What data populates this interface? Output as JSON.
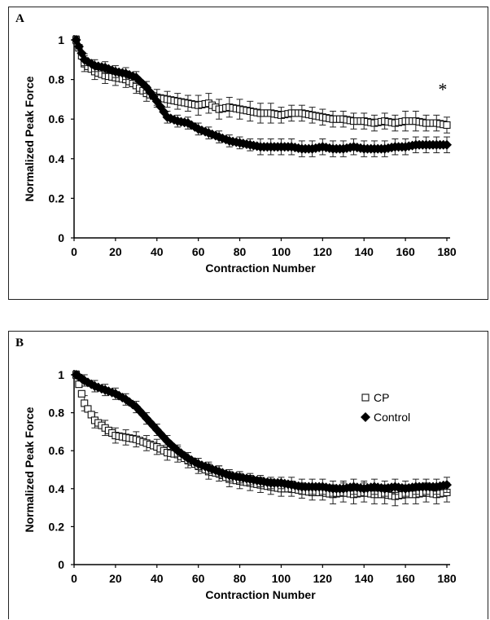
{
  "chart_data": [
    {
      "panel": "A",
      "type": "scatter",
      "xlabel": "Contraction Number",
      "ylabel": "Normalized Peak Force",
      "xlim": [
        0,
        180
      ],
      "ylim": [
        0,
        1
      ],
      "x_ticks": [
        "0",
        "20",
        "40",
        "60",
        "80",
        "100",
        "120",
        "140",
        "160",
        "180"
      ],
      "y_ticks": [
        "0",
        "0.2",
        "0.4",
        "0.6",
        "0.8",
        "1"
      ],
      "annotation": "*",
      "legend": false,
      "series": [
        {
          "marker": "open-square",
          "x": [
            1,
            5,
            10,
            15,
            20,
            25,
            30,
            35,
            40,
            45,
            50,
            55,
            60,
            65,
            70,
            75,
            80,
            85,
            90,
            95,
            100,
            105,
            110,
            115,
            120,
            125,
            130,
            135,
            140,
            145,
            150,
            155,
            160,
            165,
            170,
            175,
            180
          ],
          "y": [
            1.0,
            0.88,
            0.84,
            0.82,
            0.81,
            0.8,
            0.77,
            0.73,
            0.71,
            0.7,
            0.69,
            0.68,
            0.67,
            0.68,
            0.65,
            0.66,
            0.65,
            0.64,
            0.63,
            0.63,
            0.62,
            0.63,
            0.63,
            0.62,
            0.61,
            0.6,
            0.6,
            0.59,
            0.59,
            0.58,
            0.59,
            0.58,
            0.59,
            0.59,
            0.58,
            0.58,
            0.57
          ],
          "err": [
            0.02,
            0.04,
            0.04,
            0.04,
            0.04,
            0.04,
            0.04,
            0.04,
            0.04,
            0.04,
            0.04,
            0.04,
            0.05,
            0.05,
            0.05,
            0.05,
            0.05,
            0.05,
            0.05,
            0.05,
            0.04,
            0.04,
            0.04,
            0.04,
            0.04,
            0.04,
            0.04,
            0.04,
            0.04,
            0.04,
            0.04,
            0.04,
            0.05,
            0.05,
            0.04,
            0.04,
            0.04
          ]
        },
        {
          "marker": "filled-diamond",
          "x": [
            1,
            5,
            10,
            15,
            20,
            25,
            30,
            35,
            40,
            45,
            50,
            55,
            60,
            65,
            70,
            75,
            80,
            85,
            90,
            95,
            100,
            105,
            110,
            115,
            120,
            125,
            130,
            135,
            140,
            145,
            150,
            155,
            160,
            165,
            170,
            175,
            180
          ],
          "y": [
            1.0,
            0.9,
            0.87,
            0.86,
            0.84,
            0.83,
            0.81,
            0.76,
            0.69,
            0.61,
            0.59,
            0.58,
            0.55,
            0.53,
            0.51,
            0.49,
            0.48,
            0.47,
            0.46,
            0.46,
            0.46,
            0.46,
            0.45,
            0.45,
            0.46,
            0.45,
            0.45,
            0.46,
            0.45,
            0.45,
            0.45,
            0.46,
            0.46,
            0.47,
            0.47,
            0.47,
            0.47
          ],
          "err": [
            0.02,
            0.03,
            0.03,
            0.03,
            0.03,
            0.03,
            0.03,
            0.03,
            0.03,
            0.03,
            0.03,
            0.03,
            0.03,
            0.03,
            0.03,
            0.03,
            0.03,
            0.03,
            0.04,
            0.04,
            0.04,
            0.04,
            0.04,
            0.04,
            0.04,
            0.04,
            0.04,
            0.04,
            0.04,
            0.04,
            0.04,
            0.04,
            0.04,
            0.04,
            0.04,
            0.04,
            0.04
          ]
        }
      ]
    },
    {
      "panel": "B",
      "type": "scatter",
      "xlabel": "Contraction Number",
      "ylabel": "Normalized Peak Force",
      "xlim": [
        0,
        180
      ],
      "ylim": [
        0,
        1
      ],
      "x_ticks": [
        "0",
        "20",
        "40",
        "60",
        "80",
        "100",
        "120",
        "140",
        "160",
        "180"
      ],
      "y_ticks": [
        "0",
        "0.2",
        "0.4",
        "0.6",
        "0.8",
        "1"
      ],
      "legend": true,
      "legend_position": "right",
      "series": [
        {
          "name": "CP",
          "marker": "open-square",
          "x": [
            1,
            5,
            10,
            15,
            20,
            25,
            30,
            35,
            40,
            45,
            50,
            55,
            60,
            65,
            70,
            75,
            80,
            85,
            90,
            95,
            100,
            105,
            110,
            115,
            120,
            125,
            130,
            135,
            140,
            145,
            150,
            155,
            160,
            165,
            170,
            175,
            180
          ],
          "y": [
            1.0,
            0.85,
            0.76,
            0.72,
            0.68,
            0.67,
            0.66,
            0.64,
            0.62,
            0.59,
            0.58,
            0.55,
            0.52,
            0.49,
            0.48,
            0.45,
            0.44,
            0.43,
            0.42,
            0.41,
            0.4,
            0.4,
            0.39,
            0.38,
            0.38,
            0.37,
            0.38,
            0.37,
            0.38,
            0.37,
            0.37,
            0.36,
            0.37,
            0.37,
            0.38,
            0.37,
            0.38
          ],
          "err": [
            0.02,
            0.04,
            0.04,
            0.04,
            0.04,
            0.04,
            0.04,
            0.04,
            0.04,
            0.04,
            0.04,
            0.04,
            0.04,
            0.04,
            0.04,
            0.04,
            0.04,
            0.04,
            0.04,
            0.04,
            0.04,
            0.04,
            0.04,
            0.04,
            0.04,
            0.05,
            0.05,
            0.05,
            0.05,
            0.05,
            0.05,
            0.05,
            0.05,
            0.05,
            0.05,
            0.05,
            0.05
          ]
        },
        {
          "name": "Control",
          "marker": "filled-diamond",
          "x": [
            1,
            5,
            10,
            15,
            20,
            25,
            30,
            35,
            40,
            45,
            50,
            55,
            60,
            65,
            70,
            75,
            80,
            85,
            90,
            95,
            100,
            105,
            110,
            115,
            120,
            125,
            130,
            135,
            140,
            145,
            150,
            155,
            160,
            165,
            170,
            175,
            180
          ],
          "y": [
            1.0,
            0.97,
            0.94,
            0.92,
            0.9,
            0.87,
            0.83,
            0.77,
            0.71,
            0.65,
            0.6,
            0.56,
            0.53,
            0.51,
            0.49,
            0.47,
            0.46,
            0.45,
            0.44,
            0.43,
            0.43,
            0.42,
            0.41,
            0.41,
            0.41,
            0.4,
            0.4,
            0.41,
            0.4,
            0.41,
            0.4,
            0.41,
            0.4,
            0.41,
            0.41,
            0.41,
            0.42
          ],
          "err": [
            0.02,
            0.03,
            0.03,
            0.03,
            0.03,
            0.03,
            0.03,
            0.03,
            0.03,
            0.03,
            0.03,
            0.03,
            0.03,
            0.03,
            0.03,
            0.03,
            0.03,
            0.03,
            0.03,
            0.03,
            0.03,
            0.04,
            0.04,
            0.04,
            0.04,
            0.04,
            0.04,
            0.04,
            0.04,
            0.04,
            0.04,
            0.04,
            0.04,
            0.04,
            0.04,
            0.04,
            0.04
          ]
        }
      ]
    }
  ],
  "panels": {
    "a_label": "A",
    "b_label": "B"
  }
}
